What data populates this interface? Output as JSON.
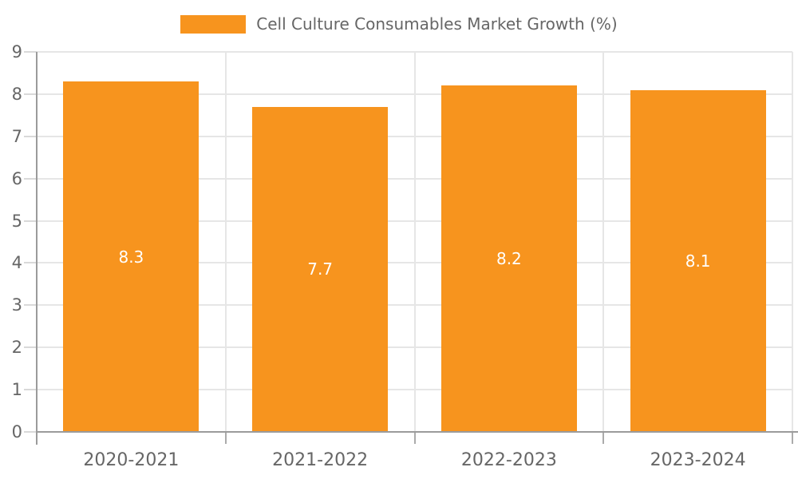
{
  "chart_data": {
    "type": "bar",
    "title": "Cell Culture Consumables Market Growth (%)",
    "categories": [
      "2020-2021",
      "2021-2022",
      "2022-2023",
      "2023-2024"
    ],
    "values": [
      8.3,
      7.7,
      8.2,
      8.1
    ],
    "data_labels": [
      "8.3",
      "7.7",
      "8.2",
      "8.1"
    ],
    "xlabel": "",
    "ylabel": "",
    "ylim": [
      0,
      9
    ],
    "yticks": [
      0,
      1,
      2,
      3,
      4,
      5,
      6,
      7,
      8,
      9
    ],
    "grid": true,
    "legend_position": "top",
    "legend_entries": [
      "Cell Culture Consumables Market Growth (%)"
    ],
    "colors": {
      "bar": "#F7941E",
      "bar_value_label": "#FFFFFF",
      "axis_line": "#9B9B9B",
      "gridline": "#E6E6E6",
      "y_tick": "#D9D9D9",
      "x_tick": "#ABABAB",
      "label_text": "#666666",
      "background": "#FFFFFF"
    }
  }
}
